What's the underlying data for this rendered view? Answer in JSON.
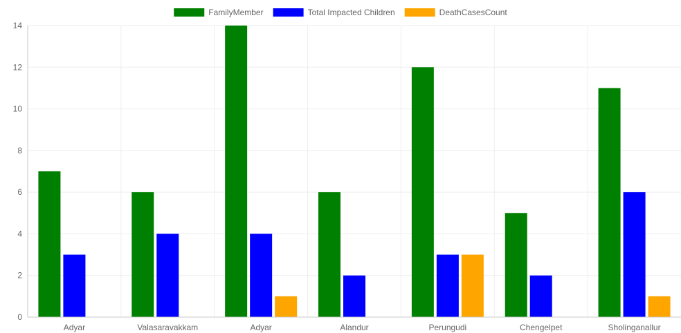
{
  "chart_data": {
    "type": "bar",
    "categories": [
      "Adyar",
      "Valasaravakkam",
      "Adyar",
      "Alandur",
      "Perungudi",
      "Chengelpet",
      "Sholinganallur"
    ],
    "series": [
      {
        "name": "FamilyMember",
        "color": "#008000",
        "values": [
          7,
          6,
          14,
          6,
          12,
          5,
          11
        ]
      },
      {
        "name": "Total Impacted Children",
        "color": "#0000ff",
        "values": [
          3,
          4,
          4,
          2,
          3,
          2,
          6
        ]
      },
      {
        "name": "DeathCasesCount",
        "color": "#ffa500",
        "values": [
          0,
          0,
          1,
          0,
          3,
          0,
          1
        ]
      }
    ],
    "yticks": [
      "0",
      "2",
      "4",
      "6",
      "8",
      "10",
      "12",
      "14"
    ],
    "ylim": [
      0,
      14
    ],
    "grid": true,
    "legend_position": "top-center"
  }
}
